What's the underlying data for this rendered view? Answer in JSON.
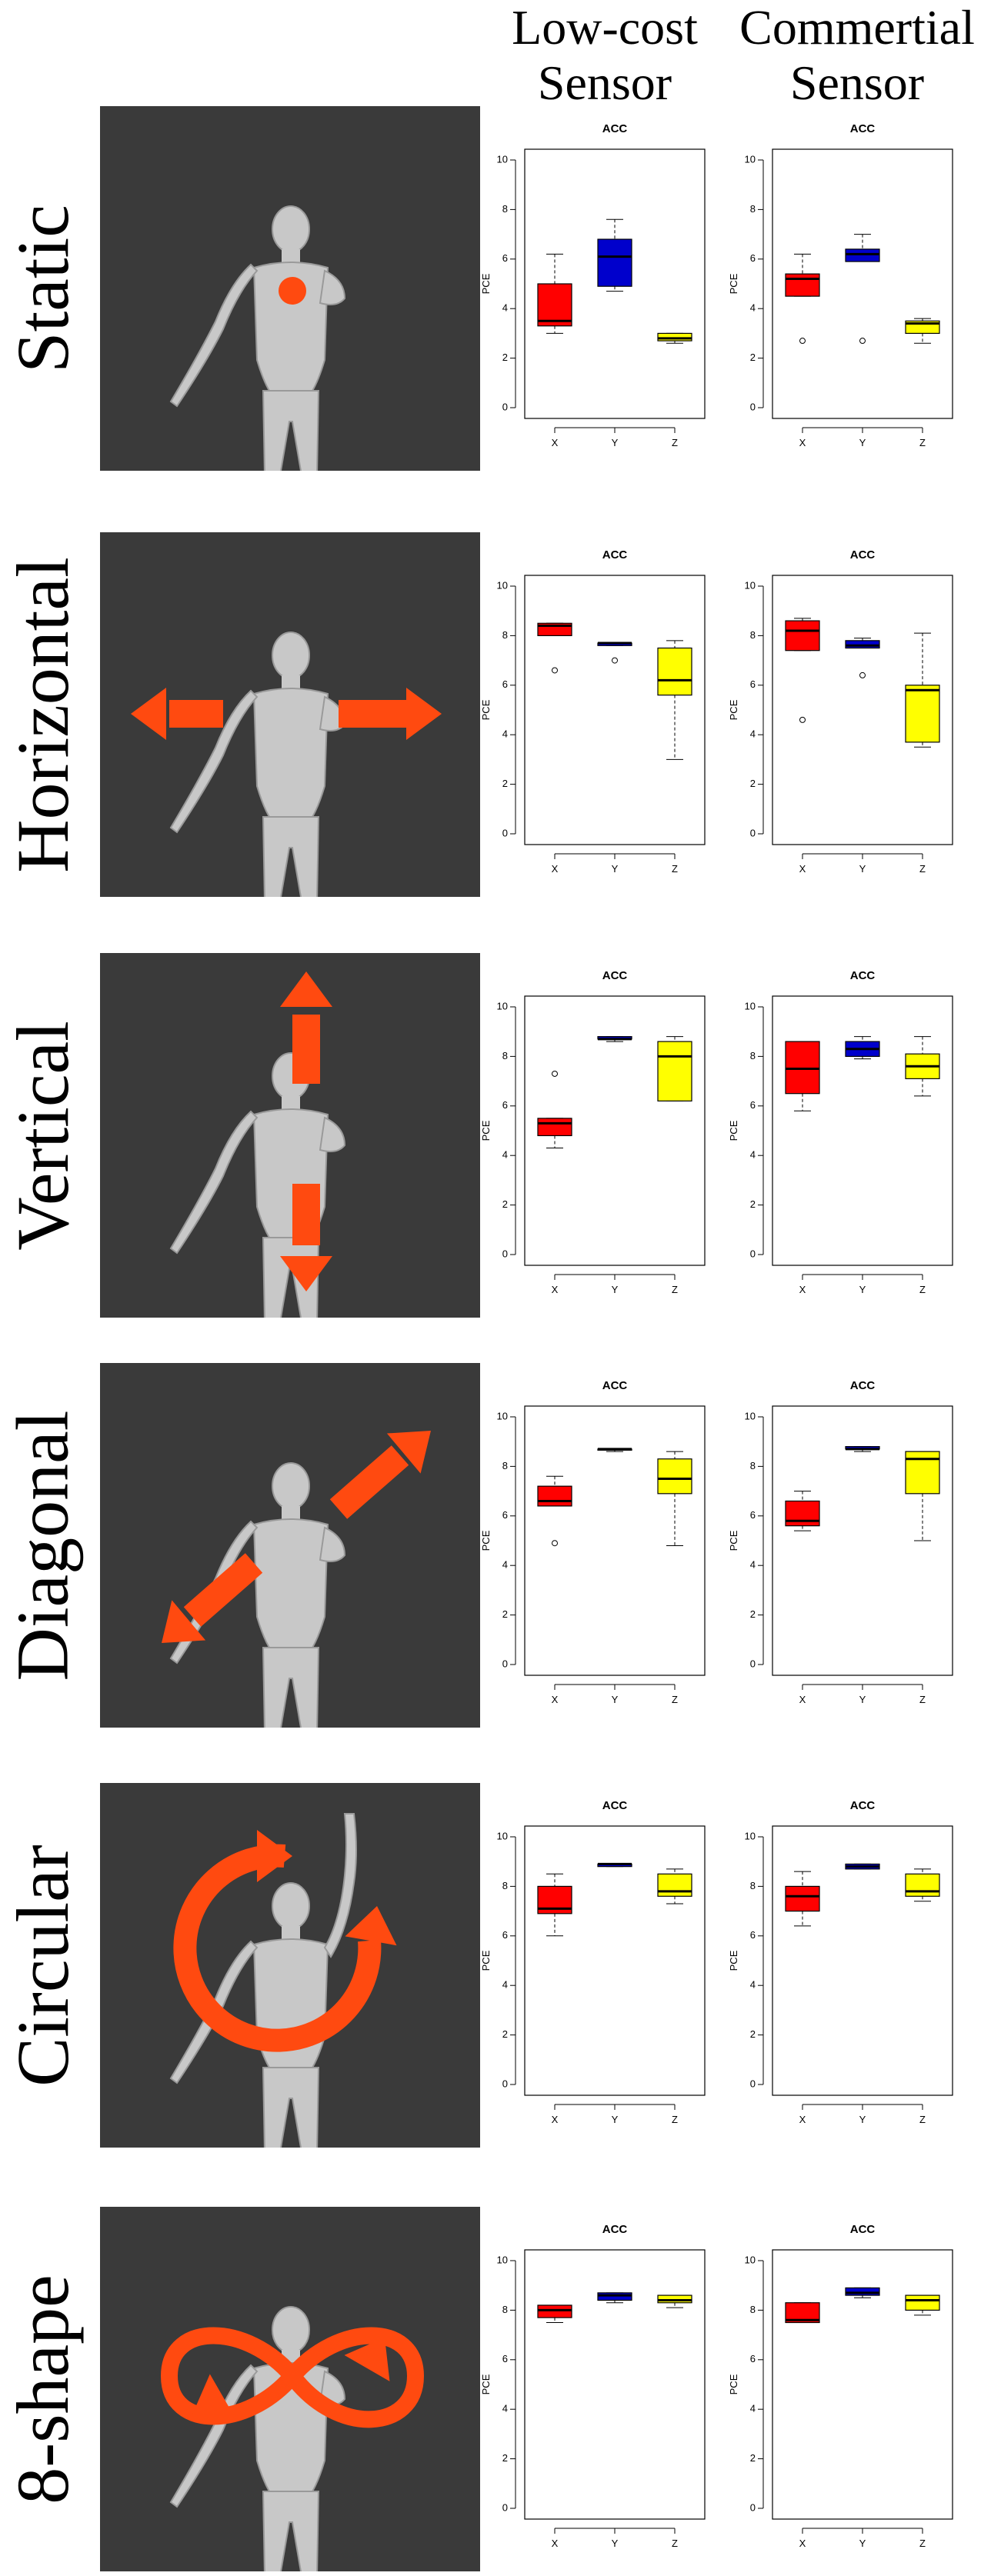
{
  "columns": {
    "low_cost": "Low-cost\nSensor",
    "commercial": "Commertial\nSensor"
  },
  "rows": [
    {
      "label": "Static",
      "motion": "dot"
    },
    {
      "label": "Horizontal",
      "motion": "horizontal-arrows"
    },
    {
      "label": "Vertical",
      "motion": "vertical-arrows"
    },
    {
      "label": "Diagonal",
      "motion": "diagonal-arrows"
    },
    {
      "label": "Circular",
      "motion": "circular-arrow"
    },
    {
      "label": "8-shape",
      "motion": "figure-eight"
    }
  ],
  "colors": {
    "X": "#ff0000",
    "Y": "#0000cc",
    "Z": "#ffff00",
    "motion_overlay": "#ff4a10",
    "photo_bg": "#3a3a3a"
  },
  "chart_data": [
    {
      "type": "box",
      "row": "Static",
      "sensor": "Low-cost",
      "title": "ACC",
      "ylabel": "PCE",
      "ylim": [
        0,
        10
      ],
      "yticks": [
        0,
        2,
        4,
        6,
        8,
        10
      ],
      "categories": [
        "X",
        "Y",
        "Z"
      ],
      "boxes": [
        {
          "min": 3.0,
          "q1": 3.3,
          "median": 3.5,
          "q3": 5.0,
          "max": 6.2,
          "outliers": []
        },
        {
          "min": 4.7,
          "q1": 4.9,
          "median": 6.1,
          "q3": 6.8,
          "max": 7.6,
          "outliers": []
        },
        {
          "min": 2.6,
          "q1": 2.7,
          "median": 2.8,
          "q3": 3.0,
          "max": 3.0,
          "outliers": []
        }
      ]
    },
    {
      "type": "box",
      "row": "Static",
      "sensor": "Commertial",
      "title": "ACC",
      "ylabel": "PCE",
      "ylim": [
        0,
        10
      ],
      "yticks": [
        0,
        2,
        4,
        6,
        8,
        10
      ],
      "categories": [
        "X",
        "Y",
        "Z"
      ],
      "boxes": [
        {
          "min": 4.5,
          "q1": 4.5,
          "median": 5.2,
          "q3": 5.4,
          "max": 6.2,
          "outliers": [
            2.7
          ]
        },
        {
          "min": 5.9,
          "q1": 5.9,
          "median": 6.2,
          "q3": 6.4,
          "max": 7.0,
          "outliers": [
            2.7
          ]
        },
        {
          "min": 2.6,
          "q1": 3.0,
          "median": 3.4,
          "q3": 3.5,
          "max": 3.6,
          "outliers": []
        }
      ]
    },
    {
      "type": "box",
      "row": "Horizontal",
      "sensor": "Low-cost",
      "title": "ACC",
      "ylabel": "PCE",
      "ylim": [
        0,
        10
      ],
      "yticks": [
        0,
        2,
        4,
        6,
        8,
        10
      ],
      "categories": [
        "X",
        "Y",
        "Z"
      ],
      "boxes": [
        {
          "min": 8.0,
          "q1": 8.0,
          "median": 8.4,
          "q3": 8.5,
          "max": 8.5,
          "outliers": [
            6.6
          ]
        },
        {
          "min": 7.6,
          "q1": 7.6,
          "median": 7.7,
          "q3": 7.7,
          "max": 7.7,
          "outliers": [
            7.0
          ]
        },
        {
          "min": 3.0,
          "q1": 5.6,
          "median": 6.2,
          "q3": 7.5,
          "max": 7.8,
          "outliers": []
        }
      ]
    },
    {
      "type": "box",
      "row": "Horizontal",
      "sensor": "Commertial",
      "title": "ACC",
      "ylabel": "PCE",
      "ylim": [
        0,
        10
      ],
      "yticks": [
        0,
        2,
        4,
        6,
        8,
        10
      ],
      "categories": [
        "X",
        "Y",
        "Z"
      ],
      "boxes": [
        {
          "min": 7.4,
          "q1": 7.4,
          "median": 8.2,
          "q3": 8.6,
          "max": 8.7,
          "outliers": [
            4.6
          ]
        },
        {
          "min": 7.5,
          "q1": 7.5,
          "median": 7.6,
          "q3": 7.8,
          "max": 7.9,
          "outliers": [
            6.4
          ]
        },
        {
          "min": 3.5,
          "q1": 3.7,
          "median": 5.8,
          "q3": 6.0,
          "max": 8.1,
          "outliers": []
        }
      ]
    },
    {
      "type": "box",
      "row": "Vertical",
      "sensor": "Low-cost",
      "title": "ACC",
      "ylabel": "PCE",
      "ylim": [
        0,
        10
      ],
      "yticks": [
        0,
        2,
        4,
        6,
        8,
        10
      ],
      "categories": [
        "X",
        "Y",
        "Z"
      ],
      "boxes": [
        {
          "min": 4.3,
          "q1": 4.8,
          "median": 5.3,
          "q3": 5.5,
          "max": 5.5,
          "outliers": [
            7.3
          ]
        },
        {
          "min": 8.6,
          "q1": 8.7,
          "median": 8.7,
          "q3": 8.8,
          "max": 8.8,
          "outliers": []
        },
        {
          "min": 6.2,
          "q1": 6.2,
          "median": 8.0,
          "q3": 8.6,
          "max": 8.8,
          "outliers": []
        }
      ]
    },
    {
      "type": "box",
      "row": "Vertical",
      "sensor": "Commertial",
      "title": "ACC",
      "ylabel": "PCE",
      "ylim": [
        0,
        10
      ],
      "yticks": [
        0,
        2,
        4,
        6,
        8,
        10
      ],
      "categories": [
        "X",
        "Y",
        "Z"
      ],
      "boxes": [
        {
          "min": 5.8,
          "q1": 6.5,
          "median": 7.5,
          "q3": 8.6,
          "max": 8.6,
          "outliers": []
        },
        {
          "min": 7.9,
          "q1": 8.0,
          "median": 8.3,
          "q3": 8.6,
          "max": 8.8,
          "outliers": []
        },
        {
          "min": 6.4,
          "q1": 7.1,
          "median": 7.6,
          "q3": 8.1,
          "max": 8.8,
          "outliers": []
        }
      ]
    },
    {
      "type": "box",
      "row": "Diagonal",
      "sensor": "Low-cost",
      "title": "ACC",
      "ylabel": "PCE",
      "ylim": [
        0,
        10
      ],
      "yticks": [
        0,
        2,
        4,
        6,
        8,
        10
      ],
      "categories": [
        "X",
        "Y",
        "Z"
      ],
      "boxes": [
        {
          "min": 6.4,
          "q1": 6.4,
          "median": 6.6,
          "q3": 7.2,
          "max": 7.6,
          "outliers": [
            4.9
          ]
        },
        {
          "min": 8.6,
          "q1": 8.7,
          "median": 8.7,
          "q3": 8.7,
          "max": 8.7,
          "outliers": []
        },
        {
          "min": 4.8,
          "q1": 6.9,
          "median": 7.5,
          "q3": 8.3,
          "max": 8.6,
          "outliers": []
        }
      ]
    },
    {
      "type": "box",
      "row": "Diagonal",
      "sensor": "Commertial",
      "title": "ACC",
      "ylabel": "PCE",
      "ylim": [
        0,
        10
      ],
      "yticks": [
        0,
        2,
        4,
        6,
        8,
        10
      ],
      "categories": [
        "X",
        "Y",
        "Z"
      ],
      "boxes": [
        {
          "min": 5.4,
          "q1": 5.6,
          "median": 5.8,
          "q3": 6.6,
          "max": 7.0,
          "outliers": []
        },
        {
          "min": 8.6,
          "q1": 8.7,
          "median": 8.7,
          "q3": 8.8,
          "max": 8.8,
          "outliers": []
        },
        {
          "min": 5.0,
          "q1": 6.9,
          "median": 8.3,
          "q3": 8.6,
          "max": 8.6,
          "outliers": []
        }
      ]
    },
    {
      "type": "box",
      "row": "Circular",
      "sensor": "Low-cost",
      "title": "ACC",
      "ylabel": "PCE",
      "ylim": [
        0,
        10
      ],
      "yticks": [
        0,
        2,
        4,
        6,
        8,
        10
      ],
      "categories": [
        "X",
        "Y",
        "Z"
      ],
      "boxes": [
        {
          "min": 6.0,
          "q1": 6.9,
          "median": 7.1,
          "q3": 8.0,
          "max": 8.5,
          "outliers": []
        },
        {
          "min": 8.8,
          "q1": 8.8,
          "median": 8.9,
          "q3": 8.9,
          "max": 8.9,
          "outliers": []
        },
        {
          "min": 7.3,
          "q1": 7.6,
          "median": 7.8,
          "q3": 8.5,
          "max": 8.7,
          "outliers": []
        }
      ]
    },
    {
      "type": "box",
      "row": "Circular",
      "sensor": "Commertial",
      "title": "ACC",
      "ylabel": "PCE",
      "ylim": [
        0,
        10
      ],
      "yticks": [
        0,
        2,
        4,
        6,
        8,
        10
      ],
      "categories": [
        "X",
        "Y",
        "Z"
      ],
      "boxes": [
        {
          "min": 6.4,
          "q1": 7.0,
          "median": 7.6,
          "q3": 8.0,
          "max": 8.6,
          "outliers": []
        },
        {
          "min": 8.7,
          "q1": 8.7,
          "median": 8.8,
          "q3": 8.9,
          "max": 8.9,
          "outliers": []
        },
        {
          "min": 7.4,
          "q1": 7.6,
          "median": 7.8,
          "q3": 8.5,
          "max": 8.7,
          "outliers": []
        }
      ]
    },
    {
      "type": "box",
      "row": "8-shape",
      "sensor": "Low-cost",
      "title": "ACC",
      "ylabel": "PCE",
      "ylim": [
        0,
        10
      ],
      "yticks": [
        0,
        2,
        4,
        6,
        8,
        10
      ],
      "categories": [
        "X",
        "Y",
        "Z"
      ],
      "boxes": [
        {
          "min": 7.5,
          "q1": 7.7,
          "median": 8.0,
          "q3": 8.2,
          "max": 8.2,
          "outliers": []
        },
        {
          "min": 8.3,
          "q1": 8.4,
          "median": 8.6,
          "q3": 8.7,
          "max": 8.7,
          "outliers": []
        },
        {
          "min": 8.1,
          "q1": 8.3,
          "median": 8.4,
          "q3": 8.6,
          "max": 8.6,
          "outliers": []
        }
      ]
    },
    {
      "type": "box",
      "row": "8-shape",
      "sensor": "Commertial",
      "title": "ACC",
      "ylabel": "PCE",
      "ylim": [
        0,
        10
      ],
      "yticks": [
        0,
        2,
        4,
        6,
        8,
        10
      ],
      "categories": [
        "X",
        "Y",
        "Z"
      ],
      "boxes": [
        {
          "min": 7.5,
          "q1": 7.5,
          "median": 7.6,
          "q3": 8.3,
          "max": 8.3,
          "outliers": []
        },
        {
          "min": 8.5,
          "q1": 8.6,
          "median": 8.7,
          "q3": 8.9,
          "max": 8.9,
          "outliers": []
        },
        {
          "min": 7.8,
          "q1": 8.0,
          "median": 8.4,
          "q3": 8.6,
          "max": 8.6,
          "outliers": []
        }
      ]
    }
  ]
}
